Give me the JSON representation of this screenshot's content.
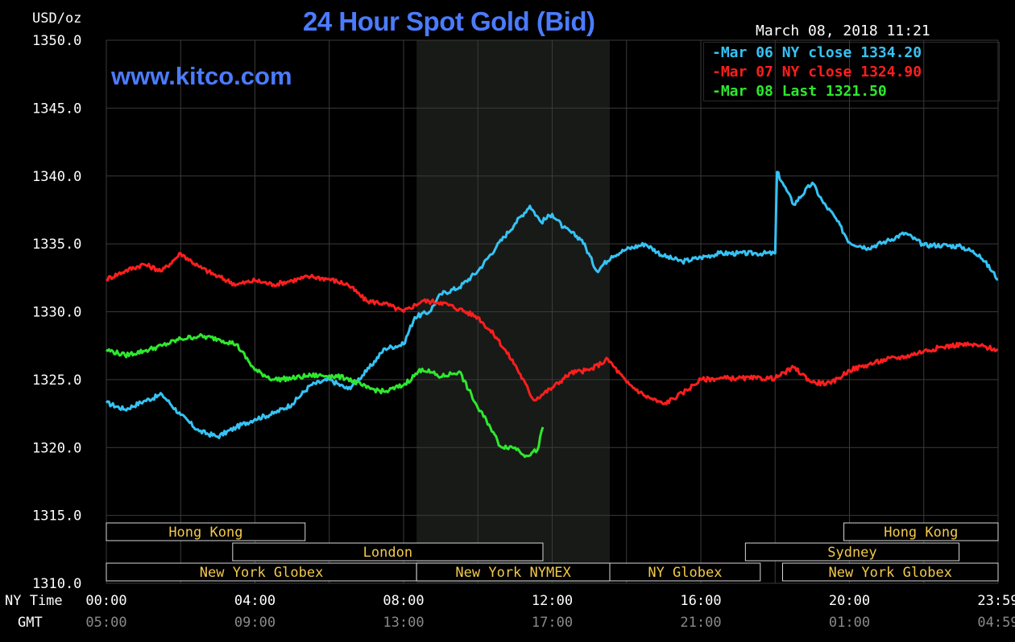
{
  "header": {
    "title": "24 Hour Spot Gold (Bid)",
    "unit_label": "USD/oz",
    "timestamp": "March 08, 2018 11:21",
    "site": "www.kitco.com"
  },
  "axes": {
    "row_label_ny": "NY Time",
    "row_label_gmt": "GMT"
  },
  "colors": {
    "background": "#000000",
    "grid": "#3a3a3a",
    "shade": "#181a17",
    "title": "#4b7bff",
    "market_text": "#f2c94c",
    "mar06": "#35c3f5",
    "mar07": "#ff1e1e",
    "mar08": "#2ee82e"
  },
  "chart_data": {
    "type": "line",
    "title": "24 Hour Spot Gold (Bid)",
    "ylabel": "USD/oz",
    "ylim": [
      1310,
      1350
    ],
    "yticks": [
      "1310.0",
      "1315.0",
      "1320.0",
      "1325.0",
      "1330.0",
      "1335.0",
      "1340.0",
      "1345.0",
      "1350.0"
    ],
    "xlim": [
      0,
      24
    ],
    "xticks_ny": [
      "00:00",
      "04:00",
      "08:00",
      "12:00",
      "16:00",
      "20:00",
      "23:59"
    ],
    "xticks_gmt": [
      "05:00",
      "09:00",
      "13:00",
      "17:00",
      "21:00",
      "01:00",
      "04:59"
    ],
    "grid": true,
    "shaded_session": [
      8.35,
      13.55
    ],
    "legend": "top-right",
    "series": [
      {
        "name": "Mar 06 NY close 1334.20",
        "color": "#35c3f5",
        "x": [
          0,
          0.5,
          1,
          1.5,
          2,
          2.5,
          3,
          3.5,
          4,
          4.5,
          5,
          5.5,
          6,
          6.5,
          7,
          7.5,
          8,
          8.3,
          8.7,
          9,
          9.5,
          10,
          10.5,
          11,
          11.4,
          11.7,
          12,
          12.3,
          12.8,
          13.2,
          13.6,
          14,
          14.5,
          15,
          15.5,
          16,
          16.5,
          17,
          17.5,
          18,
          18.05,
          18.2,
          18.5,
          19,
          19.3,
          19.6,
          20,
          20.5,
          21,
          21.5,
          22,
          22.5,
          23,
          23.5,
          24
        ],
        "values": [
          1323.3,
          1322.8,
          1323.4,
          1323.9,
          1322.4,
          1321.2,
          1320.8,
          1321.5,
          1322.1,
          1322.5,
          1323.2,
          1324.6,
          1325.0,
          1324.3,
          1325.6,
          1327.3,
          1327.6,
          1329.6,
          1330.0,
          1331.3,
          1331.8,
          1333.0,
          1334.8,
          1336.5,
          1337.8,
          1336.6,
          1337.2,
          1336.2,
          1335.3,
          1333.0,
          1334.1,
          1334.6,
          1335.0,
          1334.1,
          1333.7,
          1334.0,
          1334.3,
          1334.3,
          1334.3,
          1334.3,
          1340.3,
          1339.5,
          1337.9,
          1339.5,
          1338.0,
          1337.0,
          1335.1,
          1334.7,
          1335.2,
          1335.8,
          1334.9,
          1334.9,
          1334.8,
          1334.2,
          1332.4
        ]
      },
      {
        "name": "Mar 07 NY close 1324.90",
        "color": "#ff1e1e",
        "x": [
          0,
          0.5,
          1,
          1.5,
          2,
          2.5,
          3,
          3.5,
          4,
          4.5,
          5,
          5.5,
          6,
          6.5,
          7,
          7.5,
          8,
          8.5,
          9,
          9.5,
          10,
          10.5,
          11,
          11.5,
          12,
          12.5,
          13,
          13.5,
          14,
          14.5,
          15,
          15.5,
          16,
          16.5,
          17,
          17.5,
          18,
          18.5,
          19,
          19.5,
          20,
          20.5,
          21,
          21.5,
          22,
          22.5,
          23,
          23.5,
          24
        ],
        "values": [
          1332.4,
          1333.0,
          1333.5,
          1333.0,
          1334.3,
          1333.3,
          1332.6,
          1332.0,
          1332.3,
          1332.0,
          1332.3,
          1332.6,
          1332.4,
          1332.0,
          1330.8,
          1330.6,
          1330.0,
          1330.8,
          1330.7,
          1330.2,
          1329.6,
          1328.1,
          1326.1,
          1323.5,
          1324.4,
          1325.5,
          1325.7,
          1326.5,
          1324.8,
          1323.8,
          1323.2,
          1324.0,
          1325.0,
          1325.1,
          1325.1,
          1325.1,
          1325.1,
          1325.9,
          1324.8,
          1324.7,
          1325.7,
          1326.1,
          1326.5,
          1326.7,
          1327.1,
          1327.4,
          1327.6,
          1327.5,
          1327.2
        ]
      },
      {
        "name": "Mar 08 Last 1321.50",
        "color": "#2ee82e",
        "x": [
          0,
          0.5,
          1,
          1.5,
          2,
          2.5,
          3,
          3.5,
          4,
          4.5,
          5,
          5.5,
          6,
          6.5,
          7,
          7.5,
          8,
          8.5,
          9,
          9.5,
          10,
          10.3,
          10.6,
          11,
          11.3,
          11.6,
          11.75
        ],
        "values": [
          1327.2,
          1326.8,
          1327.1,
          1327.5,
          1328.0,
          1328.2,
          1328.0,
          1327.6,
          1325.7,
          1325.0,
          1325.1,
          1325.3,
          1325.3,
          1325.1,
          1324.4,
          1324.1,
          1324.6,
          1325.8,
          1325.2,
          1325.6,
          1322.9,
          1321.7,
          1320.1,
          1320.0,
          1319.4,
          1319.8,
          1321.5
        ]
      }
    ]
  },
  "legend": [
    {
      "text": "Mar 06 NY close 1334.20",
      "color": "#35c3f5"
    },
    {
      "text": "Mar 07 NY close 1324.90",
      "color": "#ff1e1e"
    },
    {
      "text": "Mar 08 Last 1321.50",
      "color": "#2ee82e"
    }
  ],
  "markets": [
    {
      "label": "Hong Kong",
      "start": 0,
      "end": 5.35,
      "row": 0
    },
    {
      "label": "Hong Kong",
      "start": 19.85,
      "end": 24,
      "row": 0
    },
    {
      "label": "London",
      "start": 3.4,
      "end": 11.75,
      "row": 1
    },
    {
      "label": "Sydney",
      "start": 17.2,
      "end": 22.95,
      "row": 1
    },
    {
      "label": "New York Globex",
      "start": 0,
      "end": 8.35,
      "row": 2
    },
    {
      "label": "New York NYMEX",
      "start": 8.35,
      "end": 13.55,
      "row": 2
    },
    {
      "label": "NY Globex",
      "start": 13.55,
      "end": 17.6,
      "row": 2
    },
    {
      "label": "New York Globex",
      "start": 18.2,
      "end": 24,
      "row": 2
    }
  ]
}
